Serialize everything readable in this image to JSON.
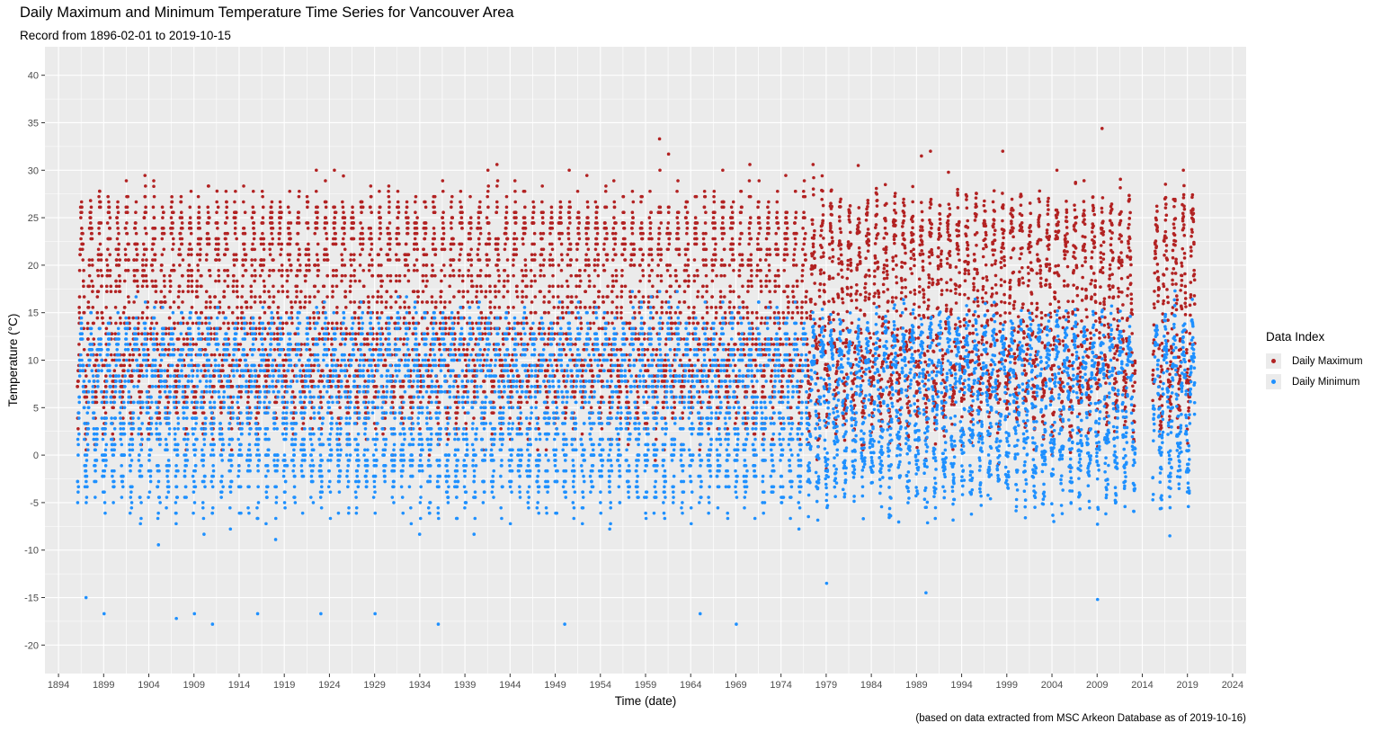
{
  "header": {
    "title": "Daily Maximum and Minimum Temperature Time Series for Vancouver Area",
    "subtitle": "Record from 1896-02-01 to 2019-10-15"
  },
  "caption": "(based on data extracted from MSC Arkeon Database as of 2019-10-16)",
  "legend": {
    "title": "Data Index",
    "items": [
      {
        "label": "Daily Maximum",
        "color": "#b22222"
      },
      {
        "label": "Daily Minimum",
        "color": "#1e90ff"
      }
    ]
  },
  "chart_data": {
    "type": "scatter",
    "title": "Daily Maximum and Minimum Temperature Time Series for Vancouver Area",
    "subtitle": "Record from 1896-02-01 to 2019-10-15",
    "xlabel": "Time (date)",
    "ylabel": "Temperature (°C)",
    "x_ticks": [
      "1894",
      "1899",
      "1904",
      "1909",
      "1914",
      "1919",
      "1924",
      "1929",
      "1934",
      "1939",
      "1944",
      "1949",
      "1954",
      "1959",
      "1964",
      "1969",
      "1974",
      "1979",
      "1984",
      "1989",
      "1994",
      "1999",
      "2004",
      "2009",
      "2014",
      "2019",
      "2024"
    ],
    "y_ticks": [
      -20,
      -15,
      -10,
      -5,
      0,
      5,
      10,
      15,
      20,
      25,
      30,
      35,
      40
    ],
    "xlim": [
      1892.5,
      2025.5
    ],
    "ylim": [
      -23,
      43
    ],
    "grid": true,
    "legend_position": "right",
    "record_start": "1896-02-01",
    "record_end": "2019-10-15",
    "data_gap": [
      2013.2,
      2015.1
    ],
    "series": [
      {
        "name": "Daily Maximum",
        "color": "#b22222",
        "annual_peak_values": [
          {
            "year": 1897,
            "value": 26.8
          },
          {
            "year": 1898,
            "value": 27.8
          },
          {
            "year": 1900,
            "value": 26.1
          },
          {
            "year": 1904,
            "value": 28.3
          },
          {
            "year": 1906,
            "value": 27.2
          },
          {
            "year": 1911,
            "value": 27.8
          },
          {
            "year": 1924,
            "value": 30.0
          },
          {
            "year": 1925,
            "value": 29.4
          },
          {
            "year": 1941,
            "value": 30.0
          },
          {
            "year": 1942,
            "value": 30.6
          },
          {
            "year": 1950,
            "value": 30.0
          },
          {
            "year": 1960,
            "value": 33.3
          },
          {
            "year": 1961,
            "value": 31.7
          },
          {
            "year": 1967,
            "value": 30.0
          },
          {
            "year": 1970,
            "value": 30.6
          },
          {
            "year": 1977,
            "value": 30.6
          },
          {
            "year": 1982,
            "value": 30.5
          },
          {
            "year": 1989,
            "value": 31.5
          },
          {
            "year": 1990,
            "value": 32.0
          },
          {
            "year": 1998,
            "value": 32.0
          },
          {
            "year": 2004,
            "value": 30.0
          },
          {
            "year": 2009,
            "value": 34.4
          },
          {
            "year": 2018,
            "value": 30.0
          }
        ],
        "summer_typical_max": 25,
        "winter_typical_max": 5
      },
      {
        "name": "Daily Minimum",
        "color": "#1e90ff",
        "annual_low_values": [
          {
            "year": 1897,
            "value": -15.0
          },
          {
            "year": 1899,
            "value": -16.7
          },
          {
            "year": 1907,
            "value": -17.2
          },
          {
            "year": 1909,
            "value": -16.7
          },
          {
            "year": 1911,
            "value": -17.8
          },
          {
            "year": 1916,
            "value": -16.7
          },
          {
            "year": 1923,
            "value": -16.7
          },
          {
            "year": 1929,
            "value": -16.7
          },
          {
            "year": 1936,
            "value": -17.8
          },
          {
            "year": 1950,
            "value": -17.8
          },
          {
            "year": 1965,
            "value": -16.7
          },
          {
            "year": 1969,
            "value": -17.8
          },
          {
            "year": 1979,
            "value": -13.5
          },
          {
            "year": 1990,
            "value": -14.5
          },
          {
            "year": 2009,
            "value": -15.2
          },
          {
            "year": 2017,
            "value": -8.5
          }
        ],
        "summer_typical_min": 13,
        "winter_typical_min": -2
      }
    ]
  }
}
